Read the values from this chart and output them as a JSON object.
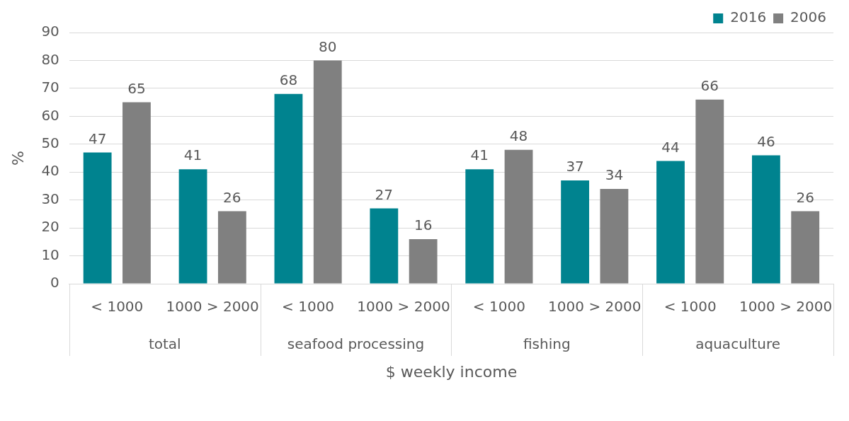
{
  "chart_data": {
    "type": "bar",
    "ylabel": "%",
    "xlabel": "$ weekly income",
    "categories": [
      "< 1000",
      "1000 > 2000",
      "< 1000",
      "1000 > 2000",
      "< 1000",
      "1000 > 2000",
      "< 1000",
      "1000 > 2000"
    ],
    "series": [
      {
        "name": "2016",
        "color": "#00838f",
        "values": [
          47,
          41,
          68,
          27,
          41,
          37,
          44,
          46
        ]
      },
      {
        "name": "2006",
        "color": "#808080",
        "values": [
          65,
          26,
          80,
          16,
          48,
          34,
          66,
          26
        ]
      }
    ],
    "annotations": [
      "total",
      "seafood processing",
      "fishing",
      "aquaculture"
    ],
    "ylim": [
      0,
      90
    ],
    "yticks": [
      0,
      10,
      20,
      30,
      40,
      50,
      60,
      70,
      80,
      90
    ],
    "grid": "y",
    "legend": "top right",
    "data_labels": true
  }
}
